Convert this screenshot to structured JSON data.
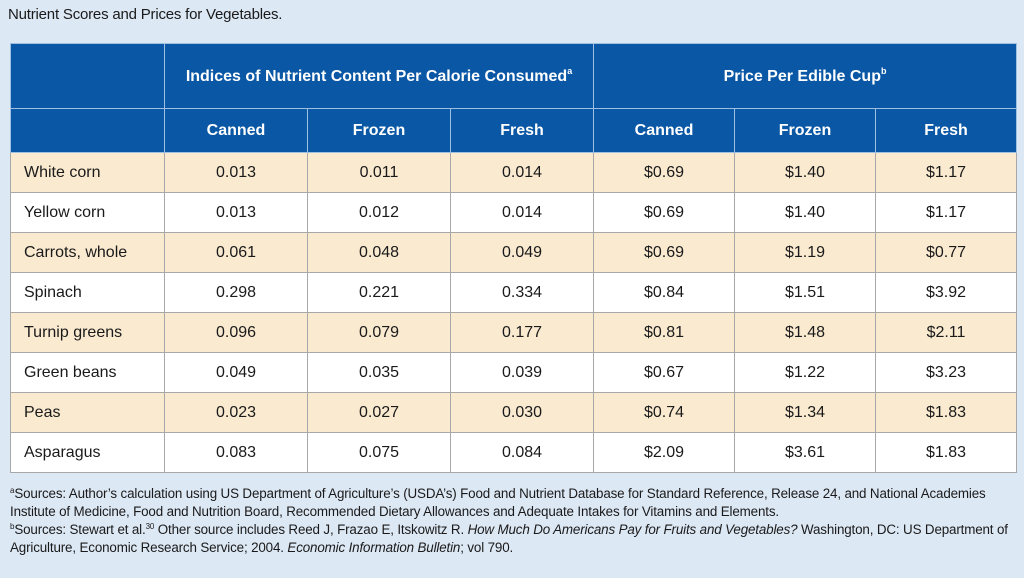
{
  "title": "Nutrient Scores and Prices for Vegetables.",
  "header": {
    "group1": "Indices of Nutrient Content Per Calorie Consumed",
    "group1_sup": "a",
    "group2": "Price Per Edible Cup",
    "group2_sup": "b",
    "columns": [
      "Canned",
      "Frozen",
      "Fresh",
      "Canned",
      "Frozen",
      "Fresh"
    ]
  },
  "rows": [
    {
      "name": "White corn",
      "values": [
        "0.013",
        "0.011",
        "0.014",
        "$0.69",
        "$1.40",
        "$1.17"
      ]
    },
    {
      "name": "Yellow corn",
      "values": [
        "0.013",
        "0.012",
        "0.014",
        "$0.69",
        "$1.40",
        "$1.17"
      ]
    },
    {
      "name": "Carrots, whole",
      "values": [
        "0.061",
        "0.048",
        "0.049",
        "$0.69",
        "$1.19",
        "$0.77"
      ]
    },
    {
      "name": "Spinach",
      "values": [
        "0.298",
        "0.221",
        "0.334",
        "$0.84",
        "$1.51",
        "$3.92"
      ]
    },
    {
      "name": "Turnip greens",
      "values": [
        "0.096",
        "0.079",
        "0.177",
        "$0.81",
        "$1.48",
        "$2.11"
      ]
    },
    {
      "name": "Green beans",
      "values": [
        "0.049",
        "0.035",
        "0.039",
        "$0.67",
        "$1.22",
        "$3.23"
      ]
    },
    {
      "name": "Peas",
      "values": [
        "0.023",
        "0.027",
        "0.030",
        "$0.74",
        "$1.34",
        "$1.83"
      ]
    },
    {
      "name": "Asparagus",
      "values": [
        "0.083",
        "0.075",
        "0.084",
        "$2.09",
        "$3.61",
        "$1.83"
      ]
    }
  ],
  "footnotes": {
    "a_sup": "a",
    "a_text": "Sources: Author’s calculation using US Department of Agriculture’s (USDA’s) Food and Nutrient Database for Standard Reference, Release 24, and National Academies Institute of Medicine, Food and Nutrition Board, Recommended Dietary Allowances and Adequate Intakes for Vitamins and Elements.",
    "b_sup": "b",
    "b_text1": "Sources: Stewart et al.",
    "b_ref": "30",
    "b_text2": " Other source includes Reed J, Frazao E, Itskowitz R. ",
    "b_italic1": "How Much Do Americans Pay for Fruits and Vegetables?",
    "b_text3": " Washington, DC: US Department of Agriculture, Economic Research Service; 2004. ",
    "b_italic2": "Economic Information Bulletin",
    "b_text4": "; vol 790."
  },
  "colors": {
    "header_bg": "#0a57a5",
    "odd_row_bg": "#f9ead0",
    "even_row_bg": "#ffffff",
    "page_bg": "#dde8f5"
  }
}
